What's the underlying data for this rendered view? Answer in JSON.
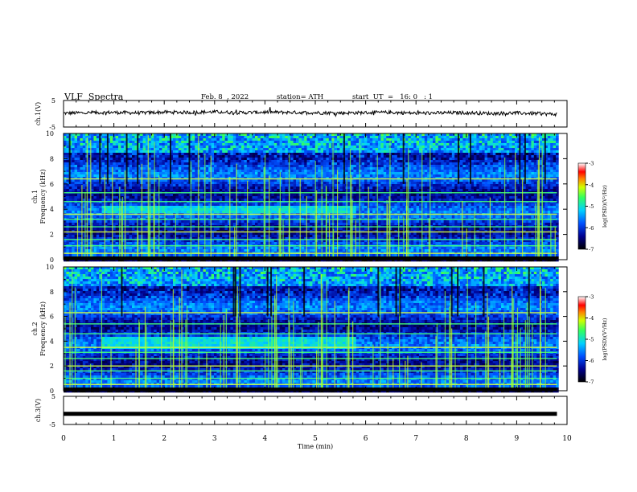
{
  "header": {
    "title": "VLF  Spectra",
    "date": "Feb. 8  , 2022",
    "station": "station= ATH",
    "start": "start  UT  =   16: 0   : 1"
  },
  "colorbar": {
    "label": "log(PSD)(V²/Hz)",
    "ticks": [
      "-3",
      "-4",
      "-5",
      "-6",
      "-7"
    ]
  },
  "chart_data": [
    {
      "type": "line",
      "panel": "ch1-waveform",
      "ylabel": "ch.1(V)",
      "ylim": [
        -5,
        5
      ],
      "yticks": [
        "5",
        "-5"
      ],
      "x": [
        0,
        0.5,
        1,
        1.5,
        2,
        2.5,
        3,
        3.5,
        4,
        4.5,
        5,
        5.5,
        6,
        6.5,
        7,
        7.5,
        8,
        8.5,
        9,
        9.5,
        9.8
      ],
      "y": [
        0.2,
        0.4,
        0.5,
        0.3,
        0.6,
        0.5,
        0.7,
        0.4,
        0.6,
        0.5,
        0.4,
        0.3,
        0.4,
        0.5,
        0.2,
        0.3,
        0.4,
        0.1,
        0.3,
        0.0,
        -0.2
      ],
      "xlim": [
        0,
        10
      ]
    },
    {
      "type": "heatmap",
      "panel": "ch1-spectrogram",
      "ylabel": "ch.1\nFrequency (kHz)",
      "ylim": [
        0,
        10
      ],
      "yticks": [
        "10",
        "8",
        "6",
        "4",
        "2",
        "0"
      ],
      "xlim": [
        0,
        10
      ],
      "data_end_min": 9.8,
      "color_range": [
        -7,
        -3
      ],
      "strong_lines_khz": [
        0.5,
        1.1,
        1.6,
        2.2,
        2.6,
        3.2,
        3.6,
        4.6,
        5.3,
        6.4
      ],
      "burst_band": {
        "start_min": 0.75,
        "end_min": 5.8,
        "low_khz": 3.6,
        "high_khz": 4.3
      }
    },
    {
      "type": "heatmap",
      "panel": "ch2-spectrogram",
      "ylabel": "ch.2\nFrequency (kHz)",
      "ylim": [
        0,
        10
      ],
      "yticks": [
        "10",
        "8",
        "6",
        "4",
        "2",
        "0"
      ],
      "xlim": [
        0,
        10
      ],
      "data_end_min": 9.8,
      "color_range": [
        -7,
        -3
      ],
      "strong_lines_khz": [
        0.5,
        1.0,
        1.6,
        2.0,
        2.6,
        3.1,
        3.5,
        4.6,
        5.4,
        6.3
      ],
      "burst_band": {
        "start_min": 0.75,
        "end_min": 5.8,
        "low_khz": 3.4,
        "high_khz": 4.4
      }
    },
    {
      "type": "line",
      "panel": "ch3-waveform",
      "ylabel": "ch.3(V)",
      "ylim": [
        -5,
        5
      ],
      "yticks": [
        "5",
        "-5"
      ],
      "x": [
        0,
        9.8
      ],
      "y": [
        -1.2,
        -1.2
      ],
      "xlim": [
        0,
        10
      ],
      "xlabel": "Time  (min)",
      "xticks": [
        "0",
        "1",
        "2",
        "3",
        "4",
        "5",
        "6",
        "7",
        "8",
        "9",
        "10"
      ]
    }
  ]
}
